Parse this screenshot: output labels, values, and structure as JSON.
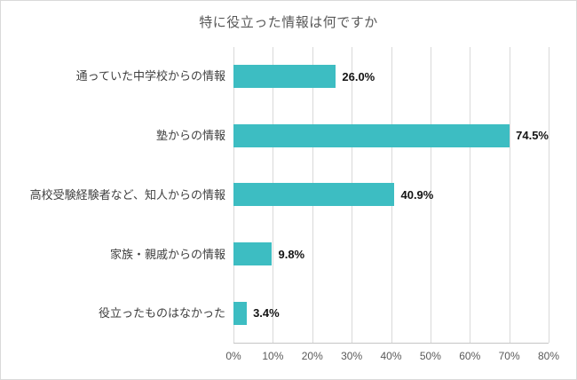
{
  "chart_data": {
    "type": "bar",
    "orientation": "horizontal",
    "title": "特に役立った情報は何ですか",
    "categories": [
      "通っていた中学校からの情報",
      "塾からの情報",
      "高校受験経験者など、知人からの情報",
      "家族・親戚からの情報",
      "役立ったものはなかった"
    ],
    "values": [
      26.0,
      74.5,
      40.9,
      9.8,
      3.4
    ],
    "value_labels": [
      "26.0%",
      "74.5%",
      "40.9%",
      "9.8%",
      "3.4%"
    ],
    "xlabel": "",
    "ylabel": "",
    "xlim": [
      0,
      80
    ],
    "x_tick_values": [
      0,
      10,
      20,
      30,
      40,
      50,
      60,
      70,
      80
    ],
    "x_ticks": [
      "0%",
      "10%",
      "20%",
      "30%",
      "40%",
      "50%",
      "60%",
      "70%",
      "80%"
    ],
    "grid": true,
    "legend": false,
    "bar_color": "#3dbdc2",
    "grid_color": "#d9d9d9",
    "title_color": "#595959"
  }
}
